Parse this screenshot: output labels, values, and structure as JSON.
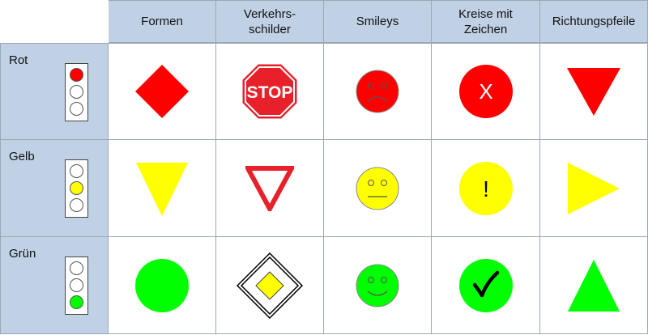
{
  "columns": [
    "Formen",
    "Verkehrs-\nschilder",
    "Smileys",
    "Kreise mit\nZeichen",
    "Richtungspfeile"
  ],
  "rows": [
    {
      "label": "Rot",
      "active_lamp": "red"
    },
    {
      "label": "Gelb",
      "active_lamp": "yellow"
    },
    {
      "label": "Grün",
      "active_lamp": "green"
    }
  ],
  "stop_sign_text": "STOP",
  "symbols": {
    "red_circle_mark": "X",
    "yellow_circle_mark": "!"
  },
  "colors": {
    "header_bg": "#c0d1e6",
    "red": "#ff0000",
    "yellow": "#ffff00",
    "green": "#00ff00",
    "stop_red": "#e8202a"
  },
  "icons": {
    "rot": [
      "red-diamond-icon",
      "stop-sign-icon",
      "sad-smiley-icon",
      "x-circle-icon",
      "down-arrow-triangle-icon"
    ],
    "gelb": [
      "yellow-triangle-icon",
      "yield-sign-icon",
      "neutral-smiley-icon",
      "exclamation-circle-icon",
      "right-arrow-triangle-icon"
    ],
    "gruen": [
      "green-circle-icon",
      "priority-road-sign-icon",
      "happy-smiley-icon",
      "check-circle-icon",
      "up-arrow-triangle-icon"
    ]
  }
}
